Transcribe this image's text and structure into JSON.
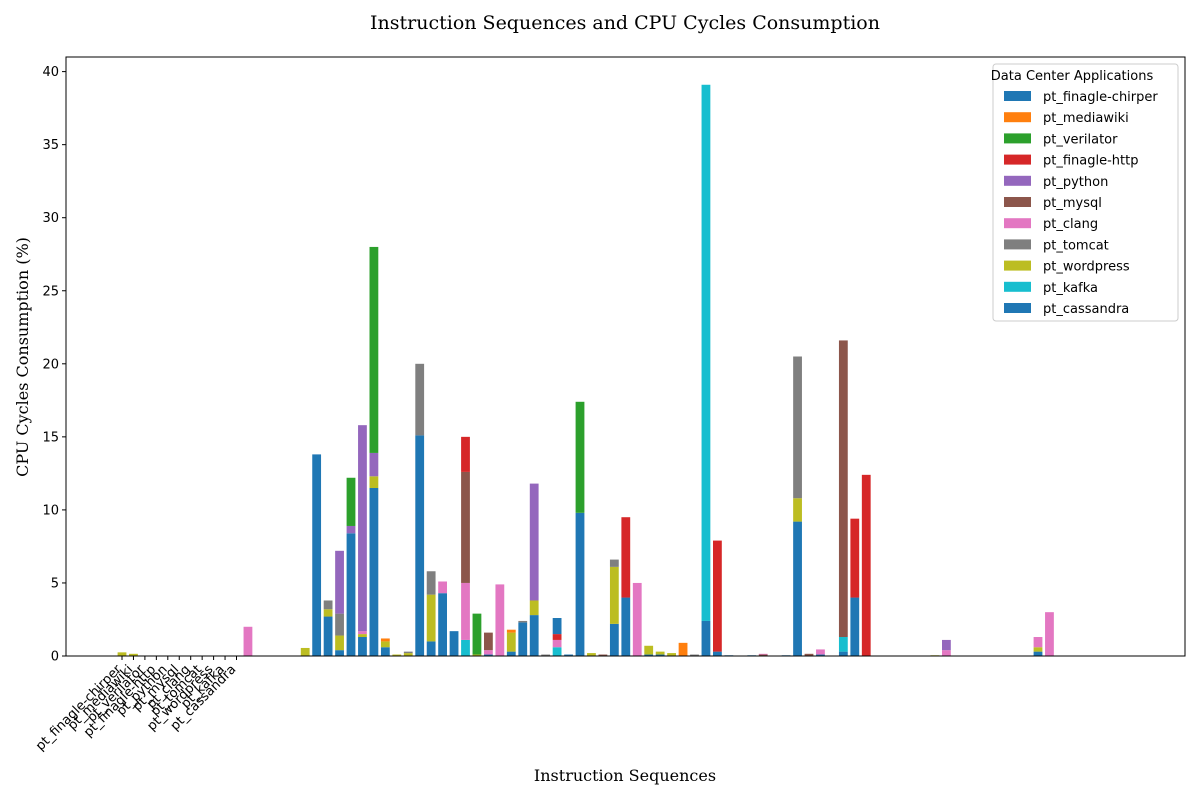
{
  "chart_data": {
    "type": "bar",
    "stacked": true,
    "title": "Instruction Sequences and CPU Cycles Consumption",
    "xlabel": "Instruction Sequences",
    "ylabel": "CPU Cycles Consumption (%)",
    "ylim": [
      0,
      41
    ],
    "yticks": [
      0,
      5,
      10,
      15,
      20,
      25,
      30,
      35,
      40
    ],
    "xtick_labels": [
      "pt_finagle-chirper",
      "pt_mediawiki",
      "pt_verilator",
      "pt_finagle-http",
      "pt_python",
      "pt_mysql",
      "pt_clang",
      "pt_tomcat",
      "pt_wordpress",
      "pt_kafka",
      "pt_cassandra"
    ],
    "legend": {
      "title": "Data Center Applications",
      "placement": "top-right"
    },
    "series_names": [
      "pt_finagle-chirper",
      "pt_mediawiki",
      "pt_verilator",
      "pt_finagle-http",
      "pt_python",
      "pt_mysql",
      "pt_clang",
      "pt_tomcat",
      "pt_wordpress",
      "pt_kafka",
      "pt_cassandra"
    ],
    "series_colors": [
      "#1f77b4",
      "#ff7f0e",
      "#2ca02c",
      "#d62728",
      "#9467bd",
      "#8c564b",
      "#e377c2",
      "#7f7f7f",
      "#bcbd22",
      "#17becf",
      "#1f77b4"
    ],
    "num_positions": 106,
    "bars": [
      {
        "x": 0,
        "segments": [
          [
            "pt_wordpress",
            0.25
          ]
        ]
      },
      {
        "x": 1,
        "segments": [
          [
            "pt_wordpress",
            0.15
          ]
        ]
      },
      {
        "x": 11,
        "segments": [
          [
            "pt_clang",
            2.0
          ]
        ]
      },
      {
        "x": 16,
        "segments": [
          [
            "pt_wordpress",
            0.55
          ]
        ]
      },
      {
        "x": 17,
        "segments": [
          [
            "pt_finagle-chirper",
            13.8
          ]
        ]
      },
      {
        "x": 18,
        "segments": [
          [
            "pt_finagle-chirper",
            2.7
          ],
          [
            "pt_wordpress",
            0.5
          ],
          [
            "pt_tomcat",
            0.6
          ]
        ]
      },
      {
        "x": 19,
        "segments": [
          [
            "pt_finagle-chirper",
            0.4
          ],
          [
            "pt_wordpress",
            1.0
          ],
          [
            "pt_tomcat",
            1.5
          ],
          [
            "pt_python",
            4.3
          ]
        ]
      },
      {
        "x": 20,
        "segments": [
          [
            "pt_finagle-chirper",
            8.4
          ],
          [
            "pt_python",
            0.5
          ],
          [
            "pt_verilator",
            3.3
          ]
        ]
      },
      {
        "x": 21,
        "segments": [
          [
            "pt_finagle-chirper",
            1.3
          ],
          [
            "pt_wordpress",
            0.2
          ],
          [
            "pt_clang",
            0.2
          ],
          [
            "pt_python",
            14.1
          ]
        ]
      },
      {
        "x": 22,
        "segments": [
          [
            "pt_finagle-chirper",
            11.5
          ],
          [
            "pt_wordpress",
            0.8
          ],
          [
            "pt_python",
            1.6
          ],
          [
            "pt_verilator",
            14.1
          ]
        ]
      },
      {
        "x": 23,
        "segments": [
          [
            "pt_finagle-chirper",
            0.6
          ],
          [
            "pt_wordpress",
            0.4
          ],
          [
            "pt_mediawiki",
            0.2
          ]
        ]
      },
      {
        "x": 24,
        "segments": [
          [
            "pt_wordpress",
            0.1
          ]
        ]
      },
      {
        "x": 25,
        "segments": [
          [
            "pt_wordpress",
            0.2
          ],
          [
            "pt_tomcat",
            0.1
          ]
        ]
      },
      {
        "x": 26,
        "segments": [
          [
            "pt_finagle-chirper",
            15.1
          ],
          [
            "pt_tomcat",
            4.9
          ]
        ]
      },
      {
        "x": 27,
        "segments": [
          [
            "pt_finagle-chirper",
            1.0
          ],
          [
            "pt_wordpress",
            3.2
          ],
          [
            "pt_tomcat",
            1.6
          ]
        ]
      },
      {
        "x": 28,
        "segments": [
          [
            "pt_finagle-chirper",
            4.3
          ],
          [
            "pt_clang",
            0.8
          ]
        ]
      },
      {
        "x": 29,
        "segments": [
          [
            "pt_finagle-chirper",
            1.7
          ]
        ]
      },
      {
        "x": 30,
        "segments": [
          [
            "pt_kafka",
            1.1
          ],
          [
            "pt_clang",
            3.9
          ],
          [
            "pt_mysql",
            7.6
          ],
          [
            "pt_finagle-http",
            2.4
          ]
        ]
      },
      {
        "x": 31,
        "segments": [
          [
            "pt_wordpress",
            0.1
          ],
          [
            "pt_verilator",
            2.8
          ]
        ]
      },
      {
        "x": 32,
        "segments": [
          [
            "pt_finagle-chirper",
            0.1
          ],
          [
            "pt_clang",
            0.3
          ],
          [
            "pt_mysql",
            1.2
          ]
        ]
      },
      {
        "x": 33,
        "segments": [
          [
            "pt_clang",
            4.9
          ]
        ]
      },
      {
        "x": 34,
        "segments": [
          [
            "pt_finagle-chirper",
            0.3
          ],
          [
            "pt_wordpress",
            1.3
          ],
          [
            "pt_mediawiki",
            0.2
          ]
        ]
      },
      {
        "x": 35,
        "segments": [
          [
            "pt_finagle-chirper",
            2.3
          ],
          [
            "pt_tomcat",
            0.1
          ]
        ]
      },
      {
        "x": 36,
        "segments": [
          [
            "pt_finagle-chirper",
            2.8
          ],
          [
            "pt_wordpress",
            1.0
          ],
          [
            "pt_python",
            8.0
          ]
        ]
      },
      {
        "x": 37,
        "segments": [
          [
            "pt_tomcat",
            0.1
          ]
        ]
      },
      {
        "x": 38,
        "segments": [
          [
            "pt_kafka",
            0.6
          ],
          [
            "pt_clang",
            0.5
          ],
          [
            "pt_finagle-http",
            0.4
          ],
          [
            "pt_finagle-chirper",
            1.1
          ]
        ]
      },
      {
        "x": 39,
        "segments": [
          [
            "pt_finagle-chirper",
            0.1
          ]
        ]
      },
      {
        "x": 40,
        "segments": [
          [
            "pt_finagle-chirper",
            9.8
          ],
          [
            "pt_verilator",
            7.6
          ]
        ]
      },
      {
        "x": 41,
        "segments": [
          [
            "pt_wordpress",
            0.2
          ]
        ]
      },
      {
        "x": 42,
        "segments": [
          [
            "pt_mysql",
            0.1
          ]
        ]
      },
      {
        "x": 43,
        "segments": [
          [
            "pt_finagle-chirper",
            2.2
          ],
          [
            "pt_wordpress",
            3.9
          ],
          [
            "pt_tomcat",
            0.5
          ]
        ]
      },
      {
        "x": 44,
        "segments": [
          [
            "pt_finagle-chirper",
            4.0
          ],
          [
            "pt_finagle-http",
            5.5
          ]
        ]
      },
      {
        "x": 45,
        "segments": [
          [
            "pt_clang",
            5.0
          ]
        ]
      },
      {
        "x": 46,
        "segments": [
          [
            "pt_finagle-chirper",
            0.1
          ],
          [
            "pt_wordpress",
            0.6
          ]
        ]
      },
      {
        "x": 47,
        "segments": [
          [
            "pt_finagle-chirper",
            0.1
          ],
          [
            "pt_wordpress",
            0.2
          ]
        ]
      },
      {
        "x": 48,
        "segments": [
          [
            "pt_wordpress",
            0.2
          ]
        ]
      },
      {
        "x": 49,
        "segments": [
          [
            "pt_mediawiki",
            0.9
          ]
        ]
      },
      {
        "x": 50,
        "segments": [
          [
            "pt_tomcat",
            0.1
          ]
        ]
      },
      {
        "x": 51,
        "segments": [
          [
            "pt_finagle-chirper",
            2.4
          ],
          [
            "pt_kafka",
            36.7
          ]
        ]
      },
      {
        "x": 52,
        "segments": [
          [
            "pt_finagle-chirper",
            0.3
          ],
          [
            "pt_finagle-http",
            7.6
          ]
        ]
      },
      {
        "x": 53,
        "segments": [
          [
            "pt_finagle-chirper",
            0.05
          ]
        ]
      },
      {
        "x": 55,
        "segments": [
          [
            "pt_finagle-chirper",
            0.05
          ]
        ]
      },
      {
        "x": 56,
        "segments": [
          [
            "pt_mysql",
            0.1
          ],
          [
            "pt_clang",
            0.05
          ]
        ]
      },
      {
        "x": 58,
        "segments": [
          [
            "pt_finagle-chirper",
            0.05
          ]
        ]
      },
      {
        "x": 59,
        "segments": [
          [
            "pt_finagle-chirper",
            9.2
          ],
          [
            "pt_wordpress",
            1.6
          ],
          [
            "pt_tomcat",
            9.7
          ]
        ]
      },
      {
        "x": 60,
        "segments": [
          [
            "pt_mysql",
            0.15
          ]
        ]
      },
      {
        "x": 61,
        "segments": [
          [
            "pt_finagle-chirper",
            0.1
          ],
          [
            "pt_clang",
            0.35
          ]
        ]
      },
      {
        "x": 63,
        "segments": [
          [
            "pt_finagle-chirper",
            0.3
          ],
          [
            "pt_kafka",
            1.0
          ],
          [
            "pt_mysql",
            20.3
          ]
        ]
      },
      {
        "x": 64,
        "segments": [
          [
            "pt_finagle-chirper",
            4.0
          ],
          [
            "pt_finagle-http",
            5.4
          ]
        ]
      },
      {
        "x": 65,
        "segments": [
          [
            "pt_finagle-http",
            12.4
          ]
        ]
      },
      {
        "x": 71,
        "segments": [
          [
            "pt_wordpress",
            0.05
          ]
        ]
      },
      {
        "x": 72,
        "segments": [
          [
            "pt_clang",
            0.4
          ],
          [
            "pt_python",
            0.7
          ]
        ]
      },
      {
        "x": 80,
        "segments": [
          [
            "pt_finagle-chirper",
            0.3
          ],
          [
            "pt_wordpress",
            0.3
          ],
          [
            "pt_clang",
            0.7
          ]
        ]
      },
      {
        "x": 81,
        "segments": [
          [
            "pt_clang",
            3.0
          ]
        ]
      }
    ]
  }
}
